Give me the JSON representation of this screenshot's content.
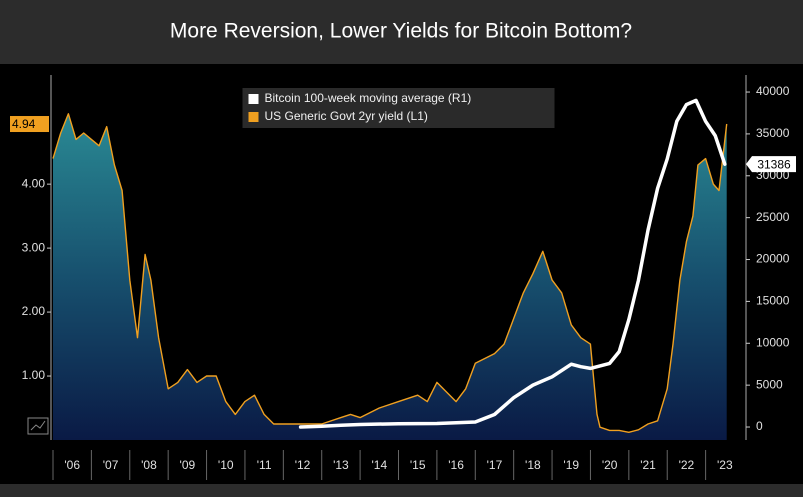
{
  "chart_data": {
    "type": "dual_axis_area_line",
    "title": "More Reversion, Lower Yields for Bitcoin Bottom?",
    "xlim": [
      2006,
      2024
    ],
    "xticks": [
      {
        "value": 2006.5,
        "label": "'06"
      },
      {
        "value": 2007.5,
        "label": "'07"
      },
      {
        "value": 2008.5,
        "label": "'08"
      },
      {
        "value": 2009.5,
        "label": "'09"
      },
      {
        "value": 2010.5,
        "label": "'10"
      },
      {
        "value": 2011.5,
        "label": "'11"
      },
      {
        "value": 2012.5,
        "label": "'12"
      },
      {
        "value": 2013.5,
        "label": "'13"
      },
      {
        "value": 2014.5,
        "label": "'14"
      },
      {
        "value": 2015.5,
        "label": "'15"
      },
      {
        "value": 2016.5,
        "label": "'16"
      },
      {
        "value": 2017.5,
        "label": "'17"
      },
      {
        "value": 2018.5,
        "label": "'18"
      },
      {
        "value": 2019.5,
        "label": "'19"
      },
      {
        "value": 2020.5,
        "label": "'20"
      },
      {
        "value": 2021.5,
        "label": "'21"
      },
      {
        "value": 2022.5,
        "label": "'22"
      },
      {
        "value": 2023.5,
        "label": "'23"
      }
    ],
    "ylim": [
      0,
      5.55
    ],
    "yticks": [
      {
        "value": 1,
        "label": "1.00"
      },
      {
        "value": 2,
        "label": "2.00"
      },
      {
        "value": 3,
        "label": "3.00"
      },
      {
        "value": 4,
        "label": "4.00"
      }
    ],
    "y2lim": [
      -1550,
      40840
    ],
    "y2ticks": [
      0,
      5000,
      10000,
      15000,
      20000,
      25000,
      30000,
      35000,
      40000
    ],
    "legend": "top-center",
    "series": [
      {
        "name": "Bitcoin 100-week moving average (R1)",
        "color": "#ffffff",
        "axis": "y2",
        "style": "line",
        "x": [
          2012.45,
          2013.0,
          2013.5,
          2014.0,
          2015.0,
          2016.0,
          2017.0,
          2017.5,
          2018.0,
          2018.5,
          2019.0,
          2019.5,
          2019.75,
          2020.0,
          2020.5,
          2020.75,
          2021.0,
          2021.25,
          2021.5,
          2021.75,
          2022.0,
          2022.25,
          2022.5,
          2022.75,
          2023.0,
          2023.25,
          2023.5
        ],
        "values": [
          0,
          100,
          200,
          300,
          400,
          420,
          600,
          1500,
          3500,
          5000,
          6000,
          7500,
          7200,
          7000,
          7600,
          9000,
          12800,
          17500,
          23500,
          28500,
          32000,
          36500,
          38500,
          39000,
          36500,
          34800,
          31386
        ]
      },
      {
        "name": "US Generic Govt 2yr yield (L1)",
        "color": "#f0a020",
        "axis": "y",
        "style": "area",
        "x": [
          2006.0,
          2006.2,
          2006.4,
          2006.6,
          2006.8,
          2007.0,
          2007.2,
          2007.4,
          2007.6,
          2007.8,
          2008.0,
          2008.2,
          2008.4,
          2008.55,
          2008.75,
          2009.0,
          2009.25,
          2009.5,
          2009.75,
          2010.0,
          2010.25,
          2010.5,
          2010.75,
          2011.0,
          2011.25,
          2011.5,
          2011.75,
          2012.0,
          2012.5,
          2013.0,
          2013.5,
          2013.75,
          2014.0,
          2014.5,
          2015.0,
          2015.5,
          2015.75,
          2016.0,
          2016.5,
          2016.75,
          2017.0,
          2017.5,
          2017.75,
          2018.0,
          2018.25,
          2018.5,
          2018.76,
          2019.0,
          2019.25,
          2019.5,
          2019.75,
          2020.0,
          2020.17,
          2020.25,
          2020.5,
          2020.75,
          2021.0,
          2021.25,
          2021.5,
          2021.75,
          2022.0,
          2022.15,
          2022.33,
          2022.5,
          2022.67,
          2022.8,
          2023.0,
          2023.2,
          2023.35,
          2023.55
        ],
        "values": [
          4.4,
          4.8,
          5.1,
          4.7,
          4.8,
          4.7,
          4.6,
          4.9,
          4.3,
          3.9,
          2.5,
          1.6,
          2.9,
          2.5,
          1.6,
          0.8,
          0.9,
          1.1,
          0.9,
          1.0,
          1.0,
          0.6,
          0.4,
          0.6,
          0.7,
          0.4,
          0.25,
          0.25,
          0.25,
          0.25,
          0.35,
          0.4,
          0.35,
          0.5,
          0.6,
          0.7,
          0.6,
          0.9,
          0.6,
          0.8,
          1.2,
          1.35,
          1.5,
          1.9,
          2.3,
          2.6,
          2.95,
          2.5,
          2.3,
          1.8,
          1.6,
          1.5,
          0.4,
          0.2,
          0.15,
          0.15,
          0.12,
          0.16,
          0.25,
          0.3,
          0.8,
          1.5,
          2.5,
          3.1,
          3.5,
          4.3,
          4.4,
          4.0,
          3.9,
          4.94
        ]
      }
    ]
  }
}
